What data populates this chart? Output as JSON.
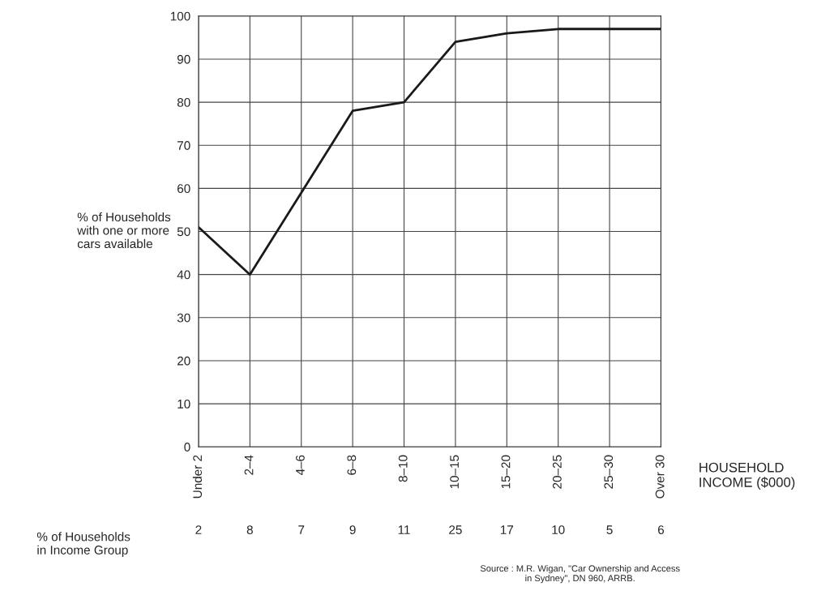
{
  "chart_data": {
    "type": "line",
    "ylabel": "% of Households\nwith one or more\ncars available",
    "xlabel": "HOUSEHOLD\nINCOME ($000)",
    "categories": [
      "Under 2",
      "2–4",
      "4–6",
      "6–8",
      "8–10",
      "10–15",
      "15–20",
      "20–25",
      "25–30",
      "Over 30"
    ],
    "series": [
      {
        "color": "#1a1a1a",
        "values": [
          51,
          40,
          59,
          78,
          80,
          94,
          96,
          97,
          97,
          97
        ]
      }
    ],
    "ylim": [
      0,
      100
    ],
    "yticks": [
      0,
      10,
      20,
      30,
      40,
      50,
      60,
      70,
      80,
      90,
      100
    ],
    "grid": true,
    "marker": "none",
    "line_style": "solid",
    "annotations": [
      "% of Households\nin Income Group",
      "2",
      "8",
      "7",
      "9",
      "11",
      "25",
      "17",
      "10",
      "5",
      "6",
      "Source : M.R. Wigan, \"Car Ownership and Access\nin Sydney\", DN 960, ARRB."
    ]
  }
}
